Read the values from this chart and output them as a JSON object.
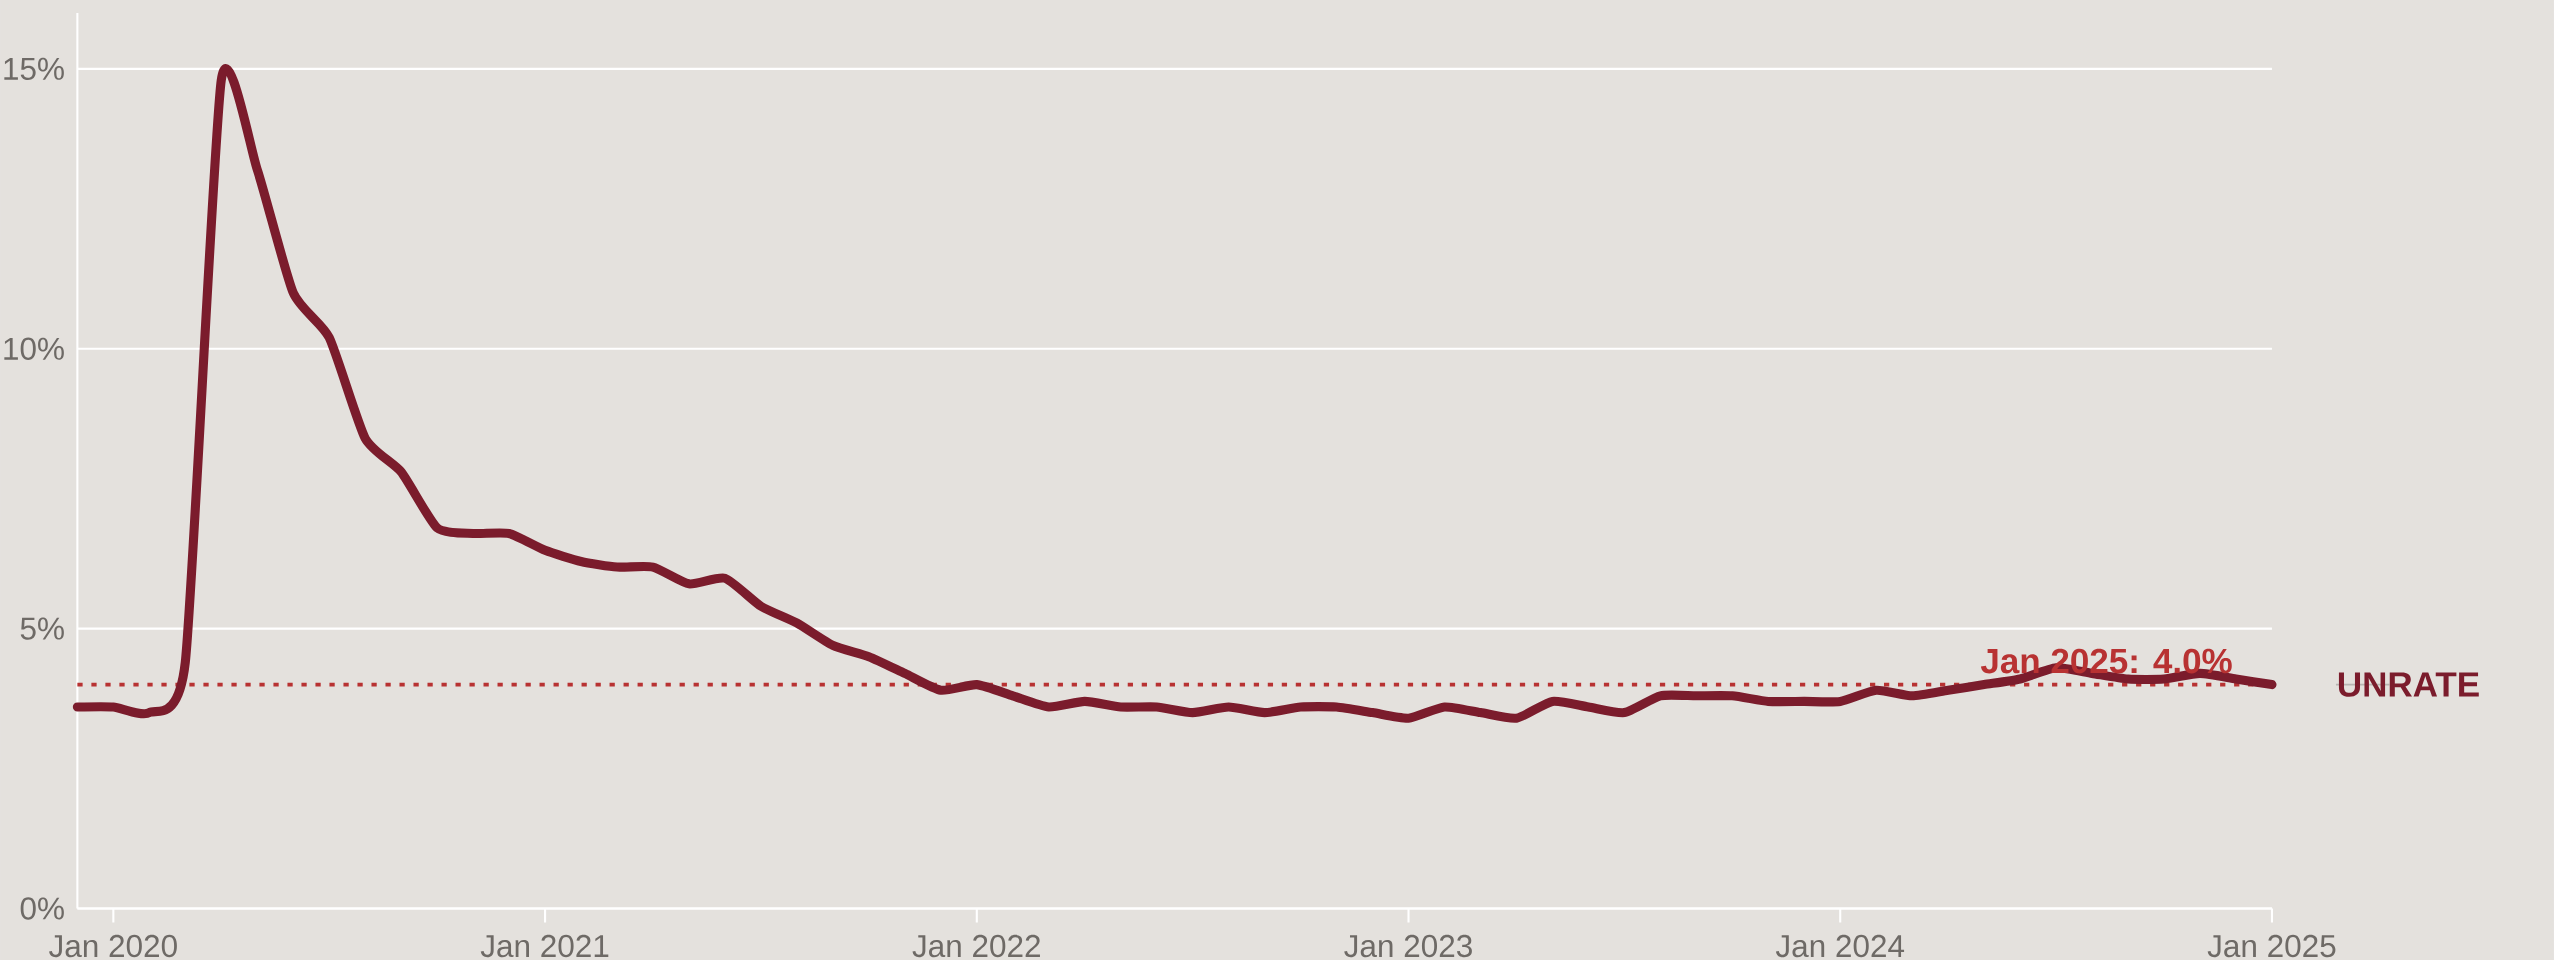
{
  "chart_data": {
    "type": "line",
    "x": [
      "2019-12",
      "2020-01",
      "2020-02",
      "2020-03",
      "2020-04",
      "2020-05",
      "2020-06",
      "2020-07",
      "2020-08",
      "2020-09",
      "2020-10",
      "2020-11",
      "2020-12",
      "2021-01",
      "2021-02",
      "2021-03",
      "2021-04",
      "2021-05",
      "2021-06",
      "2021-07",
      "2021-08",
      "2021-09",
      "2021-10",
      "2021-11",
      "2021-12",
      "2022-01",
      "2022-02",
      "2022-03",
      "2022-04",
      "2022-05",
      "2022-06",
      "2022-07",
      "2022-08",
      "2022-09",
      "2022-10",
      "2022-11",
      "2022-12",
      "2023-01",
      "2023-02",
      "2023-03",
      "2023-04",
      "2023-05",
      "2023-06",
      "2023-07",
      "2023-08",
      "2023-09",
      "2023-10",
      "2023-11",
      "2023-12",
      "2024-01",
      "2024-02",
      "2024-03",
      "2024-04",
      "2024-05",
      "2024-06",
      "2024-07",
      "2024-08",
      "2024-09",
      "2024-10",
      "2024-11",
      "2024-12",
      "2025-01"
    ],
    "series": [
      {
        "name": "UNRATE",
        "color": "#7b1c2c",
        "values": [
          3.6,
          3.6,
          3.5,
          4.4,
          14.8,
          13.2,
          11.0,
          10.2,
          8.4,
          7.8,
          6.8,
          6.7,
          6.7,
          6.4,
          6.2,
          6.1,
          6.1,
          5.8,
          5.9,
          5.4,
          5.1,
          4.7,
          4.5,
          4.2,
          3.9,
          4.0,
          3.8,
          3.6,
          3.7,
          3.6,
          3.6,
          3.5,
          3.6,
          3.5,
          3.6,
          3.6,
          3.5,
          3.4,
          3.6,
          3.5,
          3.4,
          3.7,
          3.6,
          3.5,
          3.8,
          3.8,
          3.8,
          3.7,
          3.7,
          3.7,
          3.9,
          3.8,
          3.9,
          4.0,
          4.1,
          4.3,
          4.2,
          4.1,
          4.1,
          4.2,
          4.1,
          4.0
        ]
      }
    ],
    "xlim": [
      "2019-12",
      "2025-01"
    ],
    "ylim": [
      0,
      16
    ],
    "xticks": [
      {
        "value": "2020-01",
        "label": "Jan 2020"
      },
      {
        "value": "2021-01",
        "label": "Jan 2021"
      },
      {
        "value": "2022-01",
        "label": "Jan 2022"
      },
      {
        "value": "2023-01",
        "label": "Jan 2023"
      },
      {
        "value": "2024-01",
        "label": "Jan 2024"
      },
      {
        "value": "2025-01",
        "label": "Jan 2025"
      }
    ],
    "yticks": [
      {
        "value": 0,
        "label": "0%"
      },
      {
        "value": 5,
        "label": "5%"
      },
      {
        "value": 10,
        "label": "10%"
      },
      {
        "value": 15,
        "label": "15%"
      }
    ],
    "grid": "y",
    "marker": "none",
    "line_style": "solid",
    "ref_lines": [
      {
        "axis": "y",
        "value": 4.0,
        "color": "#b83232",
        "line_style": "dotted"
      }
    ],
    "annotations": [
      {
        "text": "Jan 2025: 4.0%",
        "x": "2025-01",
        "y": 4.0
      }
    ]
  }
}
